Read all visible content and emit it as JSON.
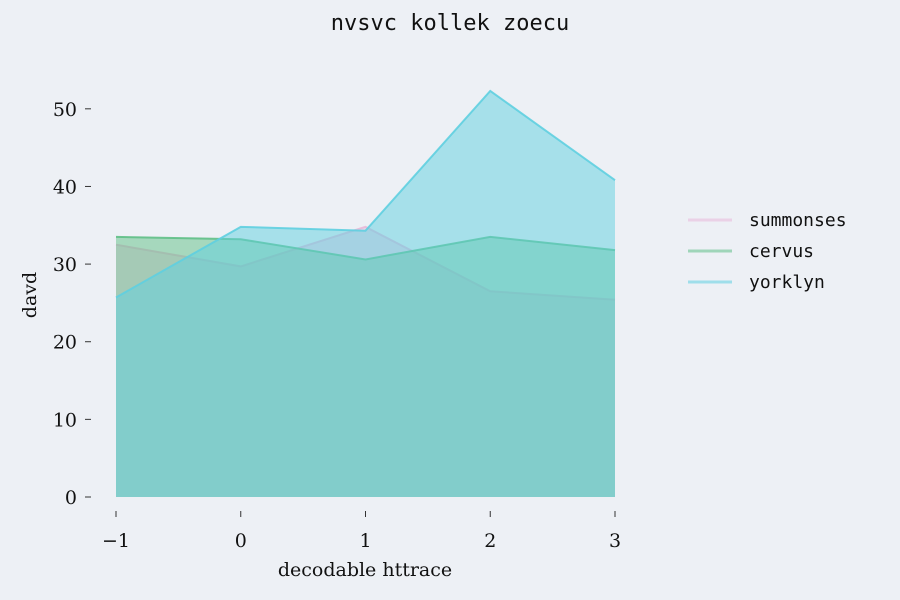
{
  "chart_data": {
    "type": "area",
    "title": "nvsvc kollek zoecu",
    "xlabel": "decodable httrace",
    "ylabel": "davd",
    "x": [
      -1,
      0,
      1,
      2,
      3
    ],
    "x_tick_labels": [
      "−1",
      "0",
      "1",
      "2",
      "3"
    ],
    "y_ticks": [
      0,
      10,
      20,
      30,
      40,
      50
    ],
    "y_tick_labels": [
      "0",
      "10",
      "20",
      "30",
      "40",
      "50"
    ],
    "xlim": [
      -1,
      3
    ],
    "ylim": [
      0,
      55
    ],
    "grid": false,
    "legend_position": "right",
    "stacked": false,
    "series": [
      {
        "name": "summonses",
        "values": [
          32.5,
          29.7,
          34.8,
          26.5,
          25.4
        ],
        "color": "#e8b8d8"
      },
      {
        "name": "cervus",
        "values": [
          33.5,
          33.2,
          30.6,
          33.5,
          31.8
        ],
        "color": "#5fbf86"
      },
      {
        "name": "yorklyn",
        "values": [
          25.7,
          34.8,
          34.3,
          52.3,
          40.8
        ],
        "color": "#5fcfe0"
      }
    ]
  }
}
